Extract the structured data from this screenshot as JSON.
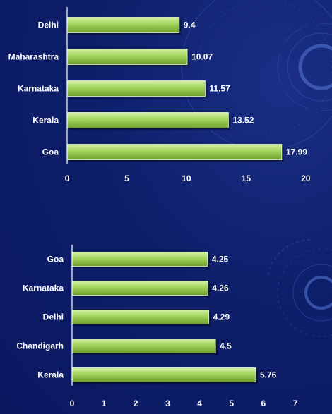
{
  "colors": {
    "background": "#0e1f6b",
    "bar_light": "#d4f0a8",
    "bar_mid": "#a3d45c",
    "bar_dark": "#6e9e2c",
    "text": "#ffffff",
    "axis": "#ffffff"
  },
  "chart_data": [
    {
      "type": "bar",
      "orientation": "horizontal",
      "categories": [
        "Delhi",
        "Maharashtra",
        "Karnataka",
        "Kerala",
        "Goa"
      ],
      "values": [
        9.4,
        10.07,
        11.57,
        13.52,
        17.99
      ],
      "value_labels": [
        "9.4",
        "10.07",
        "11.57",
        "13.52",
        "17.99"
      ],
      "xlim": [
        0,
        20
      ],
      "ticks": [
        "0",
        "5",
        "10",
        "15",
        "20"
      ],
      "grid": false,
      "title": "",
      "xlabel": "",
      "ylabel": ""
    },
    {
      "type": "bar",
      "orientation": "horizontal",
      "categories": [
        "Goa",
        "Karnataka",
        "Delhi",
        "Chandigarh",
        "Kerala"
      ],
      "values": [
        4.25,
        4.26,
        4.29,
        4.5,
        5.76
      ],
      "value_labels": [
        "4.25",
        "4.26",
        "4.29",
        "4.5",
        "5.76"
      ],
      "xlim": [
        0,
        7
      ],
      "ticks": [
        "0",
        "1",
        "2",
        "3",
        "4",
        "5",
        "6",
        "7"
      ],
      "grid": false,
      "title": "",
      "xlabel": "",
      "ylabel": ""
    }
  ]
}
